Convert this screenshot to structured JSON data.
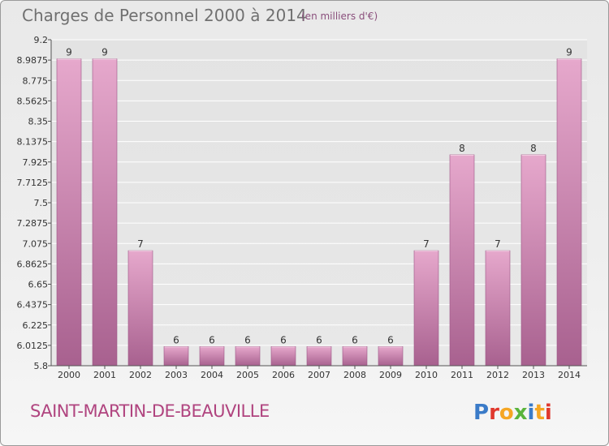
{
  "header": {
    "title": "Charges de Personnel 2000 à 2014",
    "subtitle": "(en milliers d'€)"
  },
  "footer": {
    "city": "SAINT-MARTIN-DE-BEAUVILLE",
    "logo_text": "Proxiti"
  },
  "colors": {
    "bar_top": "#e6a8cc",
    "bar_bottom": "#a8618f",
    "grid": "#ffffff",
    "axis_text": "#333333",
    "city": "#b0447f"
  },
  "chart_data": {
    "type": "bar",
    "title": "Charges de Personnel 2000 à 2014",
    "subtitle": "(en milliers d'€)",
    "categories": [
      "2000",
      "2001",
      "2002",
      "2003",
      "2004",
      "2005",
      "2006",
      "2007",
      "2008",
      "2009",
      "2010",
      "2011",
      "2012",
      "2013",
      "2014"
    ],
    "values": [
      9,
      9,
      7,
      6,
      6,
      6,
      6,
      6,
      6,
      6,
      7,
      8,
      7,
      8,
      9
    ],
    "data_labels": [
      "9",
      "9",
      "7",
      "6",
      "6",
      "6",
      "6",
      "6",
      "6",
      "6",
      "7",
      "8",
      "7",
      "8",
      "9"
    ],
    "ylim": [
      5.8,
      9.2
    ],
    "yticks": [
      5.8,
      6.0125,
      6.225,
      6.4375,
      6.65,
      6.8625,
      7.075,
      7.2875,
      7.5,
      7.7125,
      7.925,
      8.1375,
      8.35,
      8.5625,
      8.775,
      8.9875,
      9.2
    ],
    "ytick_labels": [
      "5.8",
      "6.0125",
      "6.225",
      "6.4375",
      "6.65",
      "6.8625",
      "7.075",
      "7.2875",
      "7.5",
      "7.7125",
      "7.925",
      "8.1375",
      "8.35",
      "8.5625",
      "8.775",
      "8.9875",
      "9.2"
    ],
    "xlabel": "",
    "ylabel": "",
    "grid": true,
    "legend": "none"
  }
}
